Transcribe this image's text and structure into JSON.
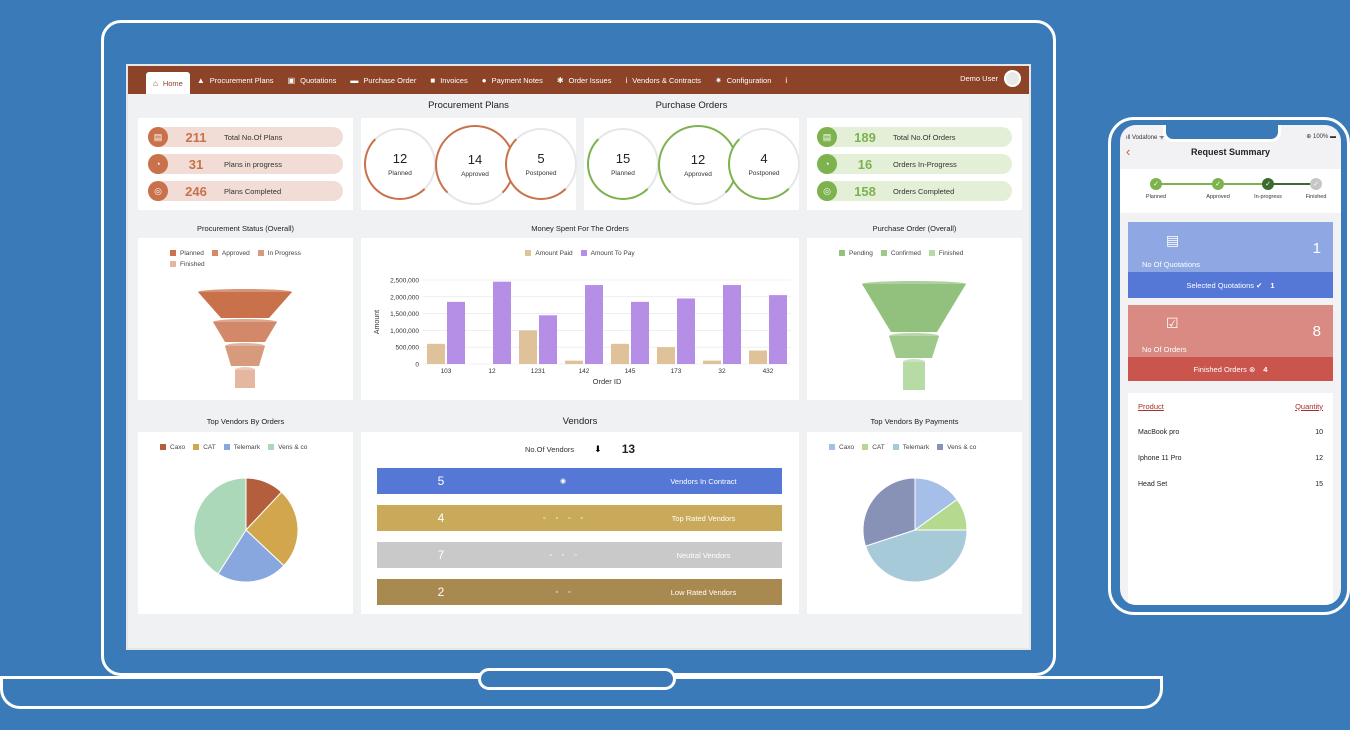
{
  "nav": {
    "items": [
      {
        "label": "Home",
        "icon": "home-icon",
        "glyph": "⌂"
      },
      {
        "label": "Procurement Plans",
        "icon": "plans-icon",
        "glyph": "▲"
      },
      {
        "label": "Quotations",
        "icon": "quotation-icon",
        "glyph": "▣"
      },
      {
        "label": "Purchase Order",
        "icon": "truck-icon",
        "glyph": "▬"
      },
      {
        "label": "Invoices",
        "icon": "invoice-icon",
        "glyph": "■"
      },
      {
        "label": "Payment Notes",
        "icon": "payment-icon",
        "glyph": "●"
      },
      {
        "label": "Order Issues",
        "icon": "order-issues-icon",
        "glyph": "✱"
      },
      {
        "label": "Vendors & Contracts",
        "icon": "vendor-icon",
        "glyph": "i"
      },
      {
        "label": "Configuration",
        "icon": "gear-icon",
        "glyph": "✷"
      },
      {
        "label": "",
        "icon": "info-icon",
        "glyph": "i"
      }
    ],
    "user": "Demo User"
  },
  "titles": {
    "procurement_plans": "Procurement Plans",
    "purchase_orders": "Purchase Orders",
    "procurement_status": "Procurement Status (Overall)",
    "money_spent": "Money Spent For The Orders",
    "purchase_order_overall": "Purchase Order (Overall)",
    "top_vendors_orders": "Top Vendors By Orders",
    "vendors": "Vendors",
    "top_vendors_payments": "Top Vendors By Payments"
  },
  "plan_stats": [
    {
      "value": "211",
      "label": "Total No.Of Plans"
    },
    {
      "value": "31",
      "label": "Plans in progress"
    },
    {
      "value": "246",
      "label": "Plans Completed"
    }
  ],
  "plan_rings": [
    {
      "value": "12",
      "label": "Planned"
    },
    {
      "value": "14",
      "label": "Approved"
    },
    {
      "value": "5",
      "label": "Postponed"
    }
  ],
  "order_rings": [
    {
      "value": "15",
      "label": "Planned"
    },
    {
      "value": "12",
      "label": "Approved"
    },
    {
      "value": "4",
      "label": "Postponed"
    }
  ],
  "order_stats": [
    {
      "value": "189",
      "label": "Total No.Of Orders"
    },
    {
      "value": "16",
      "label": "Orders In-Progress"
    },
    {
      "value": "158",
      "label": "Orders Completed"
    }
  ],
  "colors": {
    "brand": "#8c4328",
    "plan_accent": "#c8714a",
    "order_accent": "#7db24e",
    "contract": "#5577d6",
    "top_rated": "#c8aa5a",
    "neutral": "#c9c9c9",
    "low_rated": "#a88a50"
  },
  "chart_data": [
    {
      "type": "funnel",
      "title": "Procurement Status (Overall)",
      "legend": [
        "Planned",
        "Approved",
        "In Progress",
        "Finished"
      ],
      "colors": [
        "#c8714a",
        "#d4886a",
        "#d89a7c",
        "#e5b7a0"
      ],
      "values": [
        4,
        3,
        2,
        1
      ]
    },
    {
      "type": "bar",
      "title": "Money Spent For The Orders",
      "xlabel": "Order ID",
      "ylabel": "Amount",
      "categories": [
        "103",
        "12",
        "1231",
        "142",
        "145",
        "173",
        "32",
        "432"
      ],
      "yticks": [
        "0",
        "500,000",
        "1,000,000",
        "1,500,000",
        "2,000,000",
        "2,500,000"
      ],
      "ylim": [
        0,
        2500000
      ],
      "series": [
        {
          "name": "Amount Paid",
          "color": "#dfc29a",
          "values": [
            600000,
            0,
            1000000,
            100000,
            600000,
            500000,
            100000,
            400000
          ]
        },
        {
          "name": "Amount To Pay",
          "color": "#b58fe6",
          "values": [
            1850000,
            2450000,
            1450000,
            2350000,
            1850000,
            1950000,
            2350000,
            2050000
          ]
        }
      ]
    },
    {
      "type": "funnel",
      "title": "Purchase Order (Overall)",
      "legend": [
        "Pending",
        "Confirmed",
        "Finished"
      ],
      "colors": [
        "#92c17d",
        "#9fc98a",
        "#b6dba5"
      ],
      "values": [
        3,
        2,
        1
      ]
    },
    {
      "type": "pie",
      "title": "Top Vendors By Orders",
      "legend": [
        "Caxo",
        "CAT",
        "Telemark",
        "Vens & co"
      ],
      "colors": [
        "#b35e3d",
        "#d2a64c",
        "#89a7df",
        "#acd8ba"
      ],
      "values": [
        12,
        25,
        22,
        41
      ]
    },
    {
      "type": "pie",
      "title": "Top Vendors By Payments",
      "legend": [
        "Caxo",
        "CAT",
        "Telemark",
        "Vens & co"
      ],
      "colors": [
        "#a6bfe8",
        "#b5d98e",
        "#a7cad9",
        "#8891b6"
      ],
      "values": [
        15,
        10,
        45,
        30
      ]
    }
  ],
  "vendors": {
    "count_label": "No.Of Vendors",
    "count": "13",
    "rows": [
      {
        "value": "5",
        "icons": "◉",
        "label": "Vendors In Contract"
      },
      {
        "value": "4",
        "icons": "▫ ▫ ▫ ▫",
        "label": "Top Rated Vendors"
      },
      {
        "value": "7",
        "icons": "▫ ▫ ▫",
        "label": "Neutral Vendors"
      },
      {
        "value": "2",
        "icons": "▫ ▫",
        "label": "Low Rated Vendors"
      }
    ]
  },
  "phone": {
    "carrier": "ıll Vodafone ᯤ",
    "battery": "⊕ 100% ▬",
    "title": "Request Summary",
    "steps": [
      "Planned",
      "Approved",
      "In-progress",
      "Finished"
    ],
    "quotations": {
      "label": "No Of Quotations",
      "count": "1",
      "footer": "Selected Quotations ✔",
      "footer_count": "1"
    },
    "orders": {
      "label": "No Of Orders",
      "count": "8",
      "footer": "Finished Orders ⊗",
      "footer_count": "4"
    },
    "table": {
      "headers": [
        "Product",
        "Quantity"
      ],
      "rows": [
        [
          "MacBook pro",
          "10"
        ],
        [
          "Iphone 11 Pro",
          "12"
        ],
        [
          "Head Set",
          "15"
        ]
      ]
    }
  }
}
